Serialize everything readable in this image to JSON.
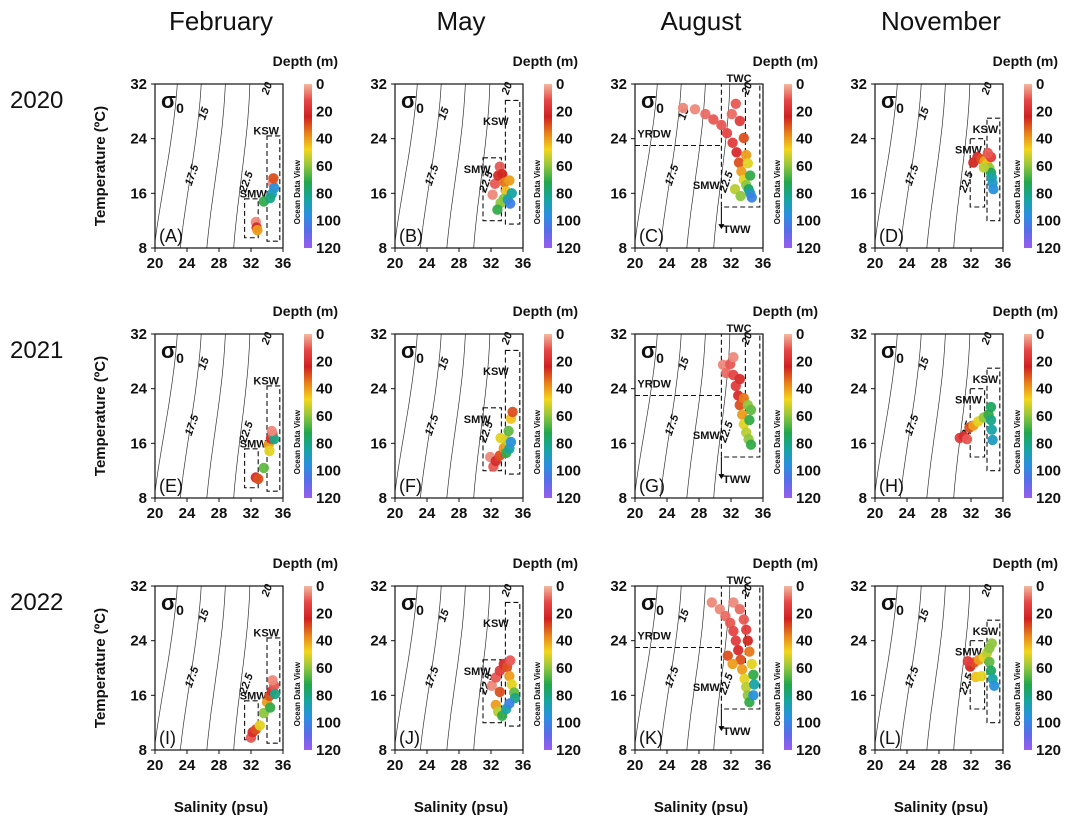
{
  "figure": {
    "months": [
      "February",
      "May",
      "August",
      "November"
    ],
    "years": [
      "2020",
      "2021",
      "2022"
    ],
    "xlabel": "Salinity (psu)",
    "ylabel": "Temperature (ºC)",
    "colorbar_title": "Depth (m)",
    "colorbar_side_text": "Ocean Data View",
    "colorbar_ticks": [
      "0",
      "20",
      "40",
      "60",
      "80",
      "100",
      "120"
    ],
    "colorbar_colors": [
      "#f2b9a0",
      "#e64545",
      "#d02020",
      "#e8801a",
      "#f4d61c",
      "#8ec63f",
      "#22a64b",
      "#16a5a0",
      "#2b8fe0",
      "#5a6be8",
      "#9a5cf0"
    ],
    "xticks": [
      "20",
      "24",
      "28",
      "32",
      "36"
    ],
    "yticks": [
      "8",
      "16",
      "24",
      "32"
    ],
    "sigma_label": "σ",
    "sigma_sub": "0"
  },
  "chart_data": {
    "type": "scatter",
    "xlim": [
      20,
      36
    ],
    "ylim": [
      8,
      32
    ],
    "color_variable": "Depth (m)",
    "color_range": [
      0,
      120
    ],
    "isopycnal_labels": [
      "15",
      "17.5",
      "20",
      "22.5"
    ],
    "panels": [
      {
        "label": "(A)",
        "year": "2020",
        "month": "February",
        "boxes": [
          "KSW",
          "SMW"
        ],
        "points": [
          [
            32.6,
            11.8,
            5
          ],
          [
            32.7,
            11.0,
            20
          ],
          [
            32.8,
            10.6,
            40
          ],
          [
            33.6,
            14.8,
            70
          ],
          [
            34.7,
            17.5,
            5
          ],
          [
            34.9,
            16.8,
            95
          ],
          [
            34.6,
            15.9,
            90
          ],
          [
            34.4,
            15.3,
            80
          ],
          [
            34.8,
            18.2,
            30
          ]
        ]
      },
      {
        "label": "(B)",
        "year": "2020",
        "month": "May",
        "boxes": [
          "KSW",
          "SMW"
        ],
        "points": [
          [
            32.2,
            15.8,
            5
          ],
          [
            32.5,
            17.4,
            10
          ],
          [
            32.9,
            18.6,
            20
          ],
          [
            33.1,
            19.9,
            10
          ],
          [
            33.4,
            18.8,
            25
          ],
          [
            33.7,
            17.6,
            35
          ],
          [
            33.9,
            16.3,
            45
          ],
          [
            33.2,
            14.6,
            60
          ],
          [
            32.8,
            13.6,
            70
          ],
          [
            33.6,
            15.2,
            60
          ],
          [
            34.1,
            15.1,
            85
          ],
          [
            34.4,
            14.5,
            100
          ],
          [
            34.6,
            16.0,
            85
          ],
          [
            34.3,
            17.9,
            40
          ]
        ]
      },
      {
        "label": "(C)",
        "year": "2020",
        "month": "August",
        "boxes": [
          "TWC",
          "YRDW",
          "SMW",
          "TWW"
        ],
        "points": [
          [
            26.0,
            28.5,
            5
          ],
          [
            27.5,
            28.3,
            5
          ],
          [
            28.8,
            27.6,
            8
          ],
          [
            29.8,
            26.8,
            10
          ],
          [
            30.8,
            26.0,
            10
          ],
          [
            31.5,
            24.8,
            12
          ],
          [
            32.2,
            23.4,
            15
          ],
          [
            32.7,
            22.0,
            20
          ],
          [
            33.0,
            20.5,
            30
          ],
          [
            33.3,
            19.2,
            40
          ],
          [
            33.6,
            18.0,
            50
          ],
          [
            33.9,
            17.2,
            60
          ],
          [
            34.2,
            16.6,
            75
          ],
          [
            34.4,
            16.0,
            90
          ],
          [
            34.6,
            15.4,
            100
          ],
          [
            32.1,
            27.6,
            8
          ],
          [
            32.6,
            29.1,
            10
          ],
          [
            33.1,
            26.6,
            15
          ],
          [
            33.6,
            24.1,
            30
          ],
          [
            33.9,
            21.6,
            40
          ],
          [
            32.5,
            16.6,
            55
          ],
          [
            33.2,
            15.6,
            60
          ],
          [
            34.1,
            20.4,
            50
          ],
          [
            34.4,
            18.6,
            70
          ]
        ]
      },
      {
        "label": "(D)",
        "year": "2020",
        "month": "November",
        "boxes": [
          "KSW",
          "SMW"
        ],
        "points": [
          [
            32.3,
            20.5,
            25
          ],
          [
            32.8,
            21.3,
            20
          ],
          [
            33.3,
            21.0,
            30
          ],
          [
            33.7,
            20.7,
            40
          ],
          [
            34.0,
            20.3,
            45
          ],
          [
            34.3,
            19.7,
            60
          ],
          [
            34.5,
            19.0,
            75
          ],
          [
            34.6,
            18.3,
            85
          ],
          [
            34.7,
            17.5,
            90
          ],
          [
            34.8,
            16.6,
            95
          ],
          [
            34.5,
            21.3,
            15
          ],
          [
            34.1,
            21.9,
            10
          ],
          [
            33.6,
            19.8,
            55
          ]
        ]
      },
      {
        "label": "(E)",
        "year": "2021",
        "month": "February",
        "boxes": [
          "KSW",
          "SMW"
        ],
        "points": [
          [
            32.6,
            11.0,
            20
          ],
          [
            32.9,
            10.8,
            30
          ],
          [
            33.6,
            12.4,
            65
          ],
          [
            34.2,
            15.8,
            40
          ],
          [
            34.5,
            16.7,
            20
          ],
          [
            34.7,
            17.3,
            10
          ],
          [
            34.9,
            16.6,
            80
          ],
          [
            34.6,
            17.8,
            5
          ],
          [
            34.3,
            14.9,
            50
          ]
        ]
      },
      {
        "label": "(F)",
        "year": "2021",
        "month": "May",
        "boxes": [
          "KSW",
          "SMW"
        ],
        "points": [
          [
            31.9,
            14.0,
            5
          ],
          [
            32.3,
            12.6,
            10
          ],
          [
            32.6,
            13.4,
            20
          ],
          [
            33.1,
            14.2,
            30
          ],
          [
            33.6,
            15.3,
            40
          ],
          [
            33.9,
            16.5,
            55
          ],
          [
            34.2,
            17.8,
            65
          ],
          [
            34.5,
            19.6,
            45
          ],
          [
            34.7,
            20.6,
            30
          ],
          [
            33.9,
            14.6,
            70
          ],
          [
            34.3,
            15.2,
            85
          ],
          [
            34.5,
            16.2,
            95
          ],
          [
            33.2,
            16.8,
            50
          ]
        ]
      },
      {
        "label": "(G)",
        "year": "2021",
        "month": "August",
        "boxes": [
          "TWC",
          "YRDW",
          "SMW",
          "TWW"
        ],
        "points": [
          [
            31.0,
            27.5,
            5
          ],
          [
            31.4,
            26.3,
            8
          ],
          [
            31.9,
            27.6,
            10
          ],
          [
            32.3,
            26.0,
            12
          ],
          [
            32.6,
            24.4,
            15
          ],
          [
            32.9,
            23.0,
            20
          ],
          [
            33.1,
            21.6,
            30
          ],
          [
            33.4,
            20.2,
            40
          ],
          [
            33.6,
            18.8,
            50
          ],
          [
            33.9,
            17.6,
            55
          ],
          [
            34.2,
            16.6,
            60
          ],
          [
            34.5,
            15.8,
            70
          ],
          [
            32.3,
            28.6,
            5
          ],
          [
            33.1,
            25.4,
            20
          ],
          [
            33.6,
            22.6,
            35
          ],
          [
            34.1,
            21.6,
            60
          ],
          [
            34.5,
            20.9,
            65
          ],
          [
            34.3,
            19.4,
            70
          ]
        ]
      },
      {
        "label": "(H)",
        "year": "2021",
        "month": "November",
        "boxes": [
          "KSW",
          "SMW"
        ],
        "points": [
          [
            30.6,
            16.8,
            15
          ],
          [
            31.1,
            17.0,
            20
          ],
          [
            31.8,
            18.3,
            30
          ],
          [
            32.3,
            18.6,
            40
          ],
          [
            32.9,
            19.2,
            50
          ],
          [
            33.6,
            19.8,
            60
          ],
          [
            34.2,
            20.2,
            70
          ],
          [
            34.5,
            19.4,
            80
          ],
          [
            34.6,
            18.0,
            85
          ],
          [
            34.7,
            16.5,
            90
          ],
          [
            34.5,
            21.3,
            75
          ],
          [
            31.5,
            16.6,
            10
          ]
        ]
      },
      {
        "label": "(I)",
        "year": "2022",
        "month": "February",
        "boxes": [
          "KSW",
          "SMW"
        ],
        "points": [
          [
            32.0,
            9.8,
            10
          ],
          [
            32.2,
            10.6,
            20
          ],
          [
            32.6,
            11.0,
            30
          ],
          [
            33.1,
            11.6,
            50
          ],
          [
            33.6,
            13.4,
            60
          ],
          [
            34.0,
            15.0,
            40
          ],
          [
            34.3,
            15.9,
            30
          ],
          [
            34.6,
            16.6,
            20
          ],
          [
            34.9,
            17.4,
            10
          ],
          [
            35.0,
            16.2,
            80
          ],
          [
            34.4,
            14.2,
            70
          ],
          [
            34.7,
            18.2,
            5
          ]
        ]
      },
      {
        "label": "(J)",
        "year": "2022",
        "month": "May",
        "boxes": [
          "KSW",
          "SMW"
        ],
        "points": [
          [
            32.1,
            17.4,
            5
          ],
          [
            32.6,
            18.6,
            10
          ],
          [
            33.1,
            19.6,
            15
          ],
          [
            33.6,
            20.6,
            20
          ],
          [
            34.0,
            20.1,
            30
          ],
          [
            34.3,
            18.8,
            40
          ],
          [
            34.6,
            17.6,
            50
          ],
          [
            34.9,
            16.4,
            65
          ],
          [
            35.0,
            15.6,
            80
          ],
          [
            32.6,
            14.6,
            40
          ],
          [
            32.9,
            13.6,
            55
          ],
          [
            33.4,
            13.0,
            70
          ],
          [
            33.9,
            14.0,
            85
          ],
          [
            34.3,
            14.8,
            100
          ],
          [
            33.1,
            16.5,
            30
          ],
          [
            34.4,
            21.1,
            10
          ]
        ]
      },
      {
        "label": "(K)",
        "year": "2022",
        "month": "August",
        "boxes": [
          "TWC",
          "YRDW",
          "SMW",
          "TWW"
        ],
        "points": [
          [
            29.6,
            29.6,
            5
          ],
          [
            30.6,
            28.6,
            5
          ],
          [
            31.3,
            27.6,
            8
          ],
          [
            31.9,
            26.6,
            10
          ],
          [
            32.3,
            25.4,
            12
          ],
          [
            32.6,
            24.0,
            15
          ],
          [
            32.9,
            22.6,
            20
          ],
          [
            33.2,
            21.2,
            30
          ],
          [
            33.4,
            19.8,
            40
          ],
          [
            33.7,
            18.4,
            50
          ],
          [
            33.9,
            17.2,
            55
          ],
          [
            34.1,
            16.0,
            60
          ],
          [
            34.3,
            15.0,
            70
          ],
          [
            32.3,
            29.6,
            5
          ],
          [
            33.1,
            28.6,
            8
          ],
          [
            33.6,
            27.1,
            10
          ],
          [
            33.9,
            25.6,
            15
          ],
          [
            34.1,
            24.0,
            25
          ],
          [
            34.3,
            22.4,
            35
          ],
          [
            34.6,
            20.6,
            50
          ],
          [
            34.8,
            19.0,
            70
          ],
          [
            34.9,
            17.6,
            85
          ],
          [
            34.8,
            16.0,
            95
          ],
          [
            31.6,
            21.8,
            30
          ],
          [
            32.2,
            20.6,
            40
          ]
        ]
      },
      {
        "label": "(L)",
        "year": "2022",
        "month": "November",
        "boxes": [
          "KSW",
          "SMW"
        ],
        "points": [
          [
            31.9,
            20.2,
            25
          ],
          [
            32.4,
            20.8,
            30
          ],
          [
            33.0,
            21.2,
            40
          ],
          [
            33.6,
            21.6,
            50
          ],
          [
            34.0,
            22.2,
            55
          ],
          [
            34.3,
            22.9,
            60
          ],
          [
            34.6,
            23.6,
            60
          ],
          [
            34.3,
            20.9,
            65
          ],
          [
            34.5,
            19.6,
            75
          ],
          [
            34.7,
            18.4,
            85
          ],
          [
            34.9,
            17.4,
            95
          ],
          [
            32.6,
            18.7,
            45
          ],
          [
            33.3,
            18.8,
            50
          ],
          [
            31.6,
            21.0,
            15
          ]
        ]
      }
    ]
  }
}
